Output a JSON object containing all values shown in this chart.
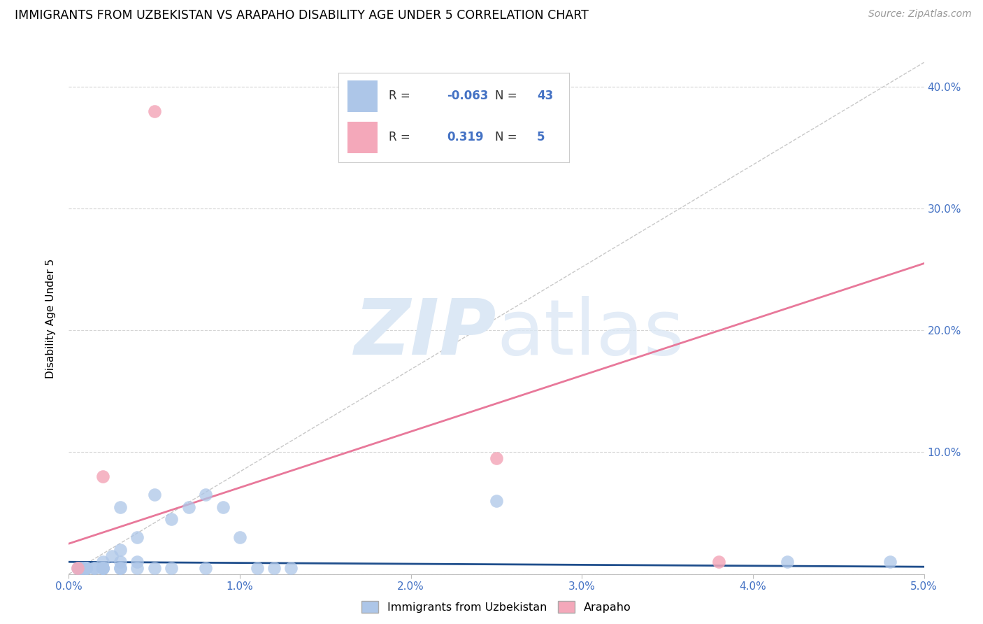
{
  "title": "IMMIGRANTS FROM UZBEKISTAN VS ARAPAHO DISABILITY AGE UNDER 5 CORRELATION CHART",
  "source": "Source: ZipAtlas.com",
  "ylabel": "Disability Age Under 5",
  "xlim": [
    0.0,
    0.05
  ],
  "ylim": [
    0.0,
    0.42
  ],
  "xticks": [
    0.0,
    0.01,
    0.02,
    0.03,
    0.04,
    0.05
  ],
  "xtick_labels": [
    "0.0%",
    "1.0%",
    "2.0%",
    "3.0%",
    "4.0%",
    "5.0%"
  ],
  "ytick_labels": [
    "",
    "10.0%",
    "20.0%",
    "30.0%",
    "40.0%"
  ],
  "ytick_vals": [
    0.0,
    0.1,
    0.2,
    0.3,
    0.4
  ],
  "blue_R": -0.063,
  "blue_N": 43,
  "pink_R": 0.319,
  "pink_N": 5,
  "blue_color": "#adc6e8",
  "pink_color": "#f4a8ba",
  "blue_line_color": "#1f4e8c",
  "pink_line_color": "#e8789a",
  "ref_line_color": "#c8c8c8",
  "blue_scatter_x": [
    0.0005,
    0.0006,
    0.0007,
    0.0008,
    0.0009,
    0.001,
    0.001,
    0.001,
    0.001,
    0.001,
    0.001,
    0.001,
    0.0015,
    0.0015,
    0.002,
    0.002,
    0.002,
    0.002,
    0.002,
    0.0025,
    0.003,
    0.003,
    0.003,
    0.003,
    0.003,
    0.004,
    0.004,
    0.004,
    0.005,
    0.005,
    0.006,
    0.006,
    0.007,
    0.008,
    0.008,
    0.009,
    0.01,
    0.011,
    0.012,
    0.013,
    0.025,
    0.042,
    0.048
  ],
  "blue_scatter_y": [
    0.005,
    0.005,
    0.005,
    0.005,
    0.005,
    0.005,
    0.005,
    0.005,
    0.005,
    0.005,
    0.005,
    0.005,
    0.005,
    0.005,
    0.005,
    0.005,
    0.005,
    0.005,
    0.01,
    0.015,
    0.005,
    0.005,
    0.01,
    0.02,
    0.055,
    0.005,
    0.01,
    0.03,
    0.005,
    0.065,
    0.005,
    0.045,
    0.055,
    0.005,
    0.065,
    0.055,
    0.03,
    0.005,
    0.005,
    0.005,
    0.06,
    0.01,
    0.01
  ],
  "pink_scatter_x": [
    0.0005,
    0.002,
    0.005,
    0.025,
    0.038
  ],
  "pink_scatter_y": [
    0.005,
    0.08,
    0.38,
    0.095,
    0.01
  ],
  "blue_trend_x": [
    0.0,
    0.05
  ],
  "blue_trend_y": [
    0.01,
    0.006
  ],
  "pink_trend_x": [
    0.0,
    0.05
  ],
  "pink_trend_y": [
    0.025,
    0.255
  ],
  "diag_line_x": [
    0.0,
    0.05
  ],
  "diag_line_y": [
    0.0,
    0.42
  ]
}
